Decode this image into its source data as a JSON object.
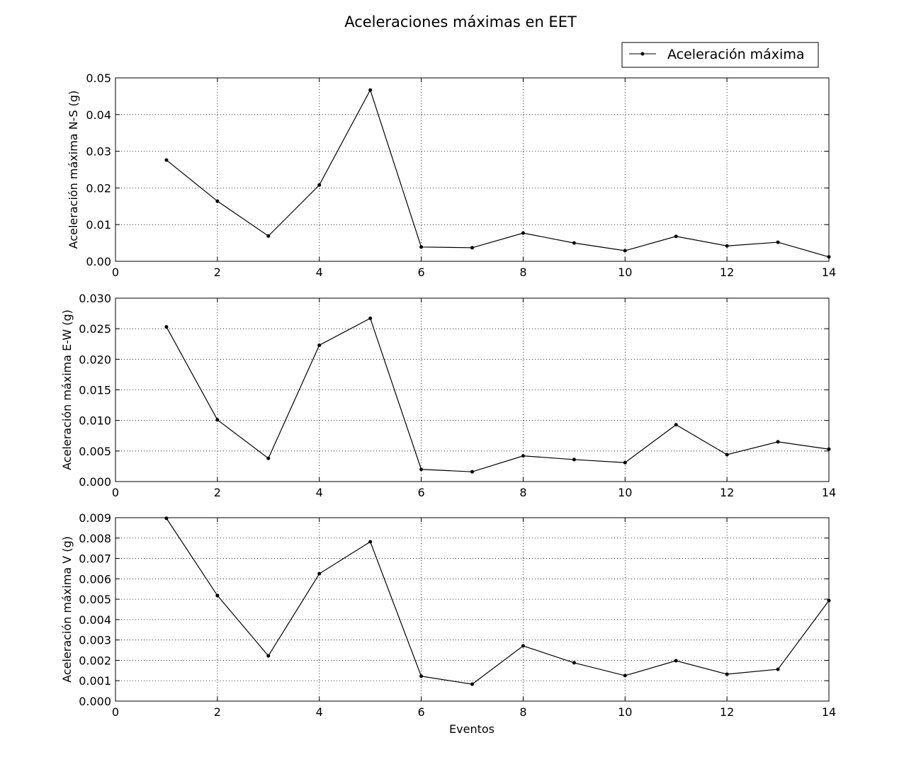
{
  "chart_data": {
    "type": "line",
    "title": "Aceleraciones máximas en EET",
    "legend": {
      "label": "Aceleración máxima",
      "placement": "top-right"
    },
    "line_color": "#000000",
    "grid": true,
    "x": [
      1,
      2,
      3,
      4,
      5,
      6,
      7,
      8,
      9,
      10,
      11,
      12,
      13,
      14
    ],
    "xlabel": "Eventos",
    "xlim": [
      0,
      14
    ],
    "xticks": [
      "0",
      "2",
      "4",
      "6",
      "8",
      "10",
      "12",
      "14"
    ],
    "panels": [
      {
        "ylabel": "Aceleración máxima N-S (g)",
        "ylim": [
          0,
          0.05
        ],
        "yticks": [
          "0.00",
          "0.01",
          "0.02",
          "0.03",
          "0.04",
          "0.05"
        ],
        "values": [
          0.0276,
          0.0164,
          0.0069,
          0.0208,
          0.0467,
          0.0039,
          0.0037,
          0.0077,
          0.005,
          0.0029,
          0.0068,
          0.0042,
          0.0052,
          0.0012
        ]
      },
      {
        "ylabel": "Aceleración máxima E-W (g)",
        "ylim": [
          0,
          0.03
        ],
        "yticks": [
          "0.000",
          "0.005",
          "0.010",
          "0.015",
          "0.020",
          "0.025",
          "0.030"
        ],
        "values": [
          0.0253,
          0.0101,
          0.0038,
          0.0223,
          0.0267,
          0.002,
          0.0016,
          0.0042,
          0.0036,
          0.0031,
          0.0093,
          0.0044,
          0.0065,
          0.0053
        ]
      },
      {
        "ylabel": "Aceleración máxima V (g)",
        "ylim": [
          0,
          0.009
        ],
        "yticks": [
          "0.000",
          "0.001",
          "0.002",
          "0.003",
          "0.004",
          "0.005",
          "0.006",
          "0.007",
          "0.008",
          "0.009"
        ],
        "values": [
          0.00897,
          0.00518,
          0.00222,
          0.00625,
          0.00782,
          0.00122,
          0.00083,
          0.00271,
          0.00188,
          0.00125,
          0.00198,
          0.00132,
          0.00156,
          0.00493
        ]
      }
    ]
  }
}
